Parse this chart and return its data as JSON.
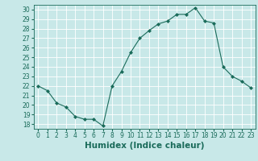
{
  "x": [
    0,
    1,
    2,
    3,
    4,
    5,
    6,
    7,
    8,
    9,
    10,
    11,
    12,
    13,
    14,
    15,
    16,
    17,
    18,
    19,
    20,
    21,
    22,
    23
  ],
  "y": [
    22.0,
    21.5,
    20.2,
    19.8,
    18.8,
    18.5,
    18.5,
    17.8,
    22.0,
    23.5,
    25.5,
    27.0,
    27.8,
    28.5,
    28.8,
    29.5,
    29.5,
    30.2,
    28.8,
    28.6,
    24.0,
    23.0,
    22.5,
    21.8
  ],
  "line_color": "#1a6b5a",
  "marker": "D",
  "marker_size": 2,
  "bg_color": "#c8e8e8",
  "grid_color": "#ffffff",
  "xlabel": "Humidex (Indice chaleur)",
  "xlim": [
    -0.5,
    23.5
  ],
  "ylim": [
    17.5,
    30.5
  ],
  "yticks": [
    18,
    19,
    20,
    21,
    22,
    23,
    24,
    25,
    26,
    27,
    28,
    29,
    30
  ],
  "xticks": [
    0,
    1,
    2,
    3,
    4,
    5,
    6,
    7,
    8,
    9,
    10,
    11,
    12,
    13,
    14,
    15,
    16,
    17,
    18,
    19,
    20,
    21,
    22,
    23
  ],
  "tick_label_fontsize": 5.5,
  "xlabel_fontsize": 7.5
}
